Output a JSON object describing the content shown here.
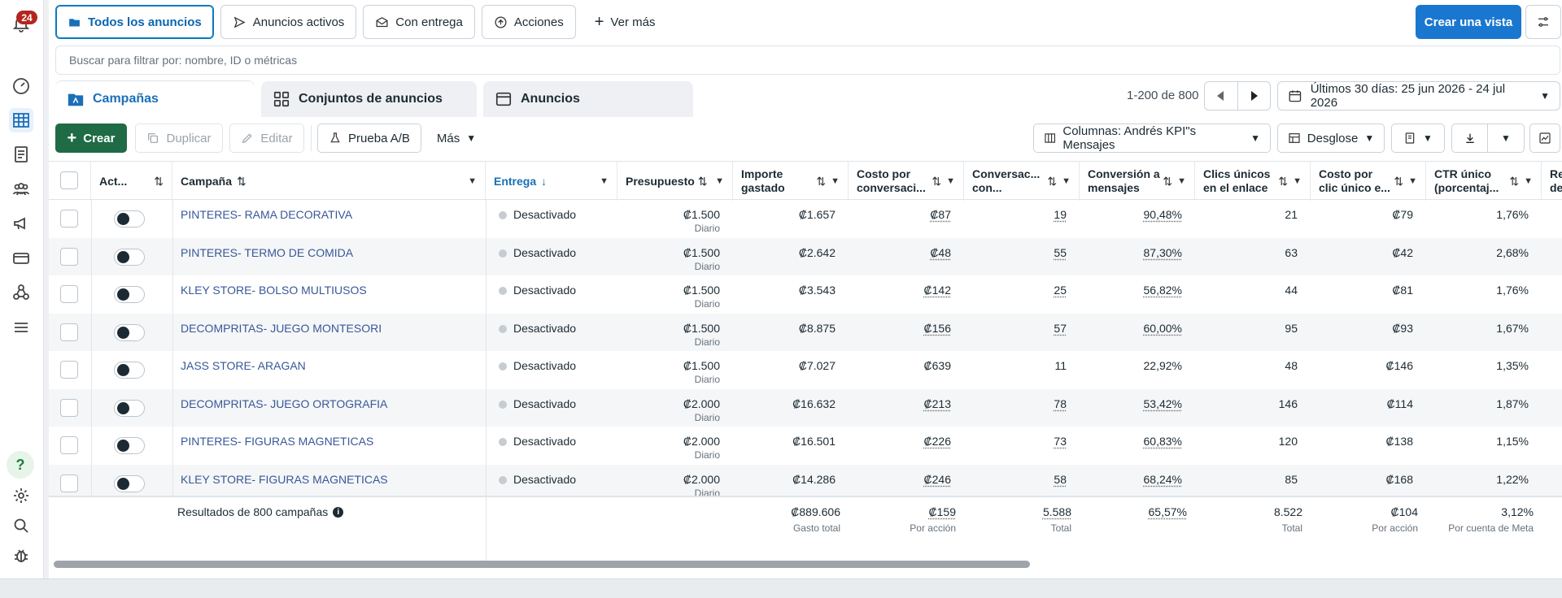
{
  "notifications": {
    "count": "24"
  },
  "filterbar": {
    "all_ads": "Todos los anuncios",
    "active_ads": "Anuncios activos",
    "with_delivery": "Con entrega",
    "actions": "Acciones",
    "see_more": "Ver más",
    "create_view": "Crear una vista"
  },
  "search": {
    "placeholder": "Buscar para filtrar por: nombre, ID o métricas"
  },
  "tabs": {
    "campaigns": "Campañas",
    "ad_sets": "Conjuntos de anuncios",
    "ads": "Anuncios"
  },
  "pager": {
    "count": "1-200 de 800"
  },
  "date_range": "Últimos 30 días: 25 jun 2026 - 24 jul 2026",
  "toolbar": {
    "create": "Crear",
    "duplicate": "Duplicar",
    "edit": "Editar",
    "ab_test": "Prueba A/B",
    "more": "Más",
    "columns": "Columnas: Andrés KPI\"s Mensajes",
    "breakdown": "Desglose"
  },
  "columns": {
    "act": "Act...",
    "campaign": "Campaña",
    "delivery": "Entrega",
    "budget": "Presupuesto",
    "spent_1": "Importe",
    "spent_2": "gastado",
    "cpc_1": "Costo por",
    "cpc_2": "conversaci...",
    "conv_1": "Conversac...",
    "conv_2": "con...",
    "convrate_1": "Conversión a",
    "convrate_2": "mensajes",
    "clicks_1": "Clics únicos",
    "clicks_2": "en el enlace",
    "cpclick_1": "Costo por",
    "cpclick_2": "clic único e...",
    "ctr_1": "CTR único",
    "ctr_2": "(porcentaj...",
    "extra_1": "Re",
    "extra_2": "de"
  },
  "rows": [
    {
      "name": "PINTERES- RAMA DECORATIVA",
      "status": "Desactivado",
      "budget": "₡1.500",
      "budget_type": "Diario",
      "spent": "₡1.657",
      "cost_conv": "₡87",
      "conversations": "19",
      "conv_rate": "90,48%",
      "clicks": "21",
      "cost_click": "₡79",
      "ctr": "1,76%"
    },
    {
      "name": "PINTERES- TERMO DE COMIDA",
      "status": "Desactivado",
      "budget": "₡1.500",
      "budget_type": "Diario",
      "spent": "₡2.642",
      "cost_conv": "₡48",
      "conversations": "55",
      "conv_rate": "87,30%",
      "clicks": "63",
      "cost_click": "₡42",
      "ctr": "2,68%"
    },
    {
      "name": "KLEY STORE- BOLSO MULTIUSOS",
      "status": "Desactivado",
      "budget": "₡1.500",
      "budget_type": "Diario",
      "spent": "₡3.543",
      "cost_conv": "₡142",
      "conversations": "25",
      "conv_rate": "56,82%",
      "clicks": "44",
      "cost_click": "₡81",
      "ctr": "1,76%"
    },
    {
      "name": "DECOMPRITAS- JUEGO MONTESORI",
      "status": "Desactivado",
      "budget": "₡1.500",
      "budget_type": "Diario",
      "spent": "₡8.875",
      "cost_conv": "₡156",
      "conversations": "57",
      "conv_rate": "60,00%",
      "clicks": "95",
      "cost_click": "₡93",
      "ctr": "1,67%"
    },
    {
      "name": "JASS STORE- ARAGAN",
      "status": "Desactivado",
      "budget": "₡1.500",
      "budget_type": "Diario",
      "spent": "₡7.027",
      "cost_conv": "₡639",
      "conversations": "11",
      "conv_rate": "22,92%",
      "clicks": "48",
      "cost_click": "₡146",
      "ctr": "1,35%"
    },
    {
      "name": "DECOMPRITAS- JUEGO ORTOGRAFIA",
      "status": "Desactivado",
      "budget": "₡2.000",
      "budget_type": "Diario",
      "spent": "₡16.632",
      "cost_conv": "₡213",
      "conversations": "78",
      "conv_rate": "53,42%",
      "clicks": "146",
      "cost_click": "₡114",
      "ctr": "1,87%"
    },
    {
      "name": "PINTERES- FIGURAS MAGNETICAS",
      "status": "Desactivado",
      "budget": "₡2.000",
      "budget_type": "Diario",
      "spent": "₡16.501",
      "cost_conv": "₡226",
      "conversations": "73",
      "conv_rate": "60,83%",
      "clicks": "120",
      "cost_click": "₡138",
      "ctr": "1,15%"
    },
    {
      "name": "KLEY STORE- FIGURAS MAGNETICAS",
      "status": "Desactivado",
      "budget": "₡2.000",
      "budget_type": "Diario",
      "spent": "₡14.286",
      "cost_conv": "₡246",
      "conversations": "58",
      "conv_rate": "68,24%",
      "clicks": "85",
      "cost_click": "₡168",
      "ctr": "1,22%"
    }
  ],
  "totals": {
    "label": "Resultados de 800 campañas",
    "spent": "₡889.606",
    "spent_sub": "Gasto total",
    "cost_conv": "₡159",
    "cost_conv_sub": "Por acción",
    "conversations": "5.588",
    "conversations_sub": "Total",
    "conv_rate": "65,57%",
    "clicks": "8.522",
    "clicks_sub": "Total",
    "cost_click": "₡104",
    "cost_click_sub": "Por acción",
    "ctr": "3,12%",
    "ctr_sub": "Por cuenta de Meta"
  },
  "colors": {
    "primary": "#1a77d0",
    "create": "#1e6b45",
    "link": "#385898",
    "badge": "#b3261e"
  }
}
